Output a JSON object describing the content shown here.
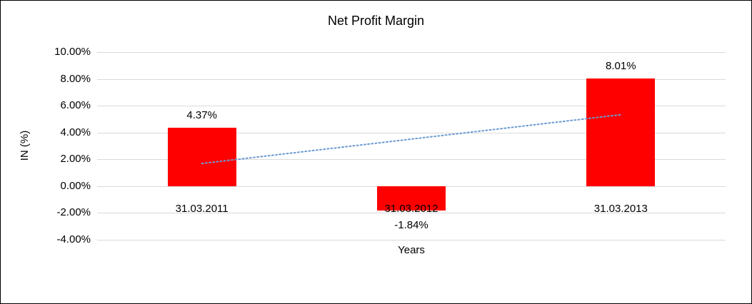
{
  "chart_data": {
    "type": "bar",
    "title": "Net Profit Margin",
    "xlabel": "Years",
    "ylabel": "IN (%)",
    "categories": [
      "31.03.2011",
      "31.03.2012",
      "31.03.2013"
    ],
    "values": [
      4.37,
      -1.84,
      8.01
    ],
    "data_labels": [
      "4.37%",
      "-1.84%",
      "8.01%"
    ],
    "ylim": [
      -4,
      10
    ],
    "ytick_step": 2,
    "ytick_labels": [
      "10.00%",
      "8.00%",
      "6.00%",
      "4.00%",
      "2.00%",
      "0.00%",
      "-2.00%",
      "-4.00%"
    ],
    "grid": true,
    "grid_color": "#d9d9d9",
    "bar_color": "#ff0000",
    "legend": "none",
    "trendline": {
      "style": "dotted",
      "color": "#6b9bd2",
      "start": 1.69,
      "end": 5.33
    }
  }
}
